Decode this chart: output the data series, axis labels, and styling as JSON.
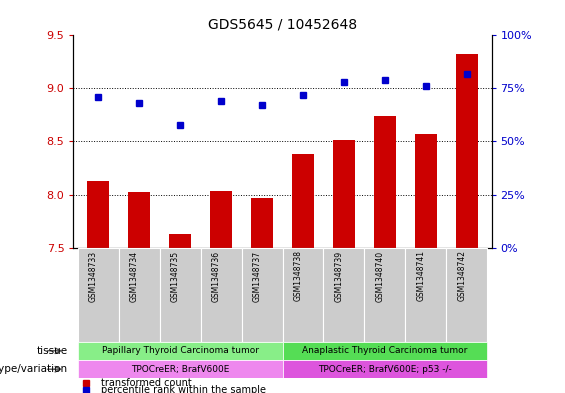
{
  "title": "GDS5645 / 10452648",
  "samples": [
    "GSM1348733",
    "GSM1348734",
    "GSM1348735",
    "GSM1348736",
    "GSM1348737",
    "GSM1348738",
    "GSM1348739",
    "GSM1348740",
    "GSM1348741",
    "GSM1348742"
  ],
  "transformed_count": [
    8.13,
    8.02,
    7.63,
    8.03,
    7.97,
    8.38,
    8.51,
    8.74,
    8.57,
    9.32
  ],
  "percentile_rank": [
    71,
    68,
    58,
    69,
    67,
    72,
    78,
    79,
    76,
    82
  ],
  "ylim_left": [
    7.5,
    9.5
  ],
  "ylim_right": [
    0,
    100
  ],
  "yticks_left": [
    7.5,
    8.0,
    8.5,
    9.0,
    9.5
  ],
  "yticks_right": [
    0,
    25,
    50,
    75,
    100
  ],
  "ytick_labels_right": [
    "0%",
    "25%",
    "50%",
    "75%",
    "100%"
  ],
  "bar_color": "#cc0000",
  "dot_color": "#0000cc",
  "tissue_group1_label": "Papillary Thyroid Carcinoma tumor",
  "tissue_group2_label": "Anaplastic Thyroid Carcinoma tumor",
  "tissue_group1_color": "#88ee88",
  "tissue_group2_color": "#55dd55",
  "geno_group1_label": "TPOCreER; BrafV600E",
  "geno_group2_label": "TPOCreER; BrafV600E; p53 -/-",
  "geno_group1_color": "#ee88ee",
  "geno_group2_color": "#dd55dd",
  "row_label_tissue": "tissue",
  "row_label_geno": "genotype/variation",
  "legend_label_bar": "transformed count",
  "legend_label_dot": "percentile rank within the sample",
  "background_color": "#ffffff",
  "grid_yticks": [
    8.0,
    8.5,
    9.0
  ],
  "sample_bg_color": "#cccccc"
}
